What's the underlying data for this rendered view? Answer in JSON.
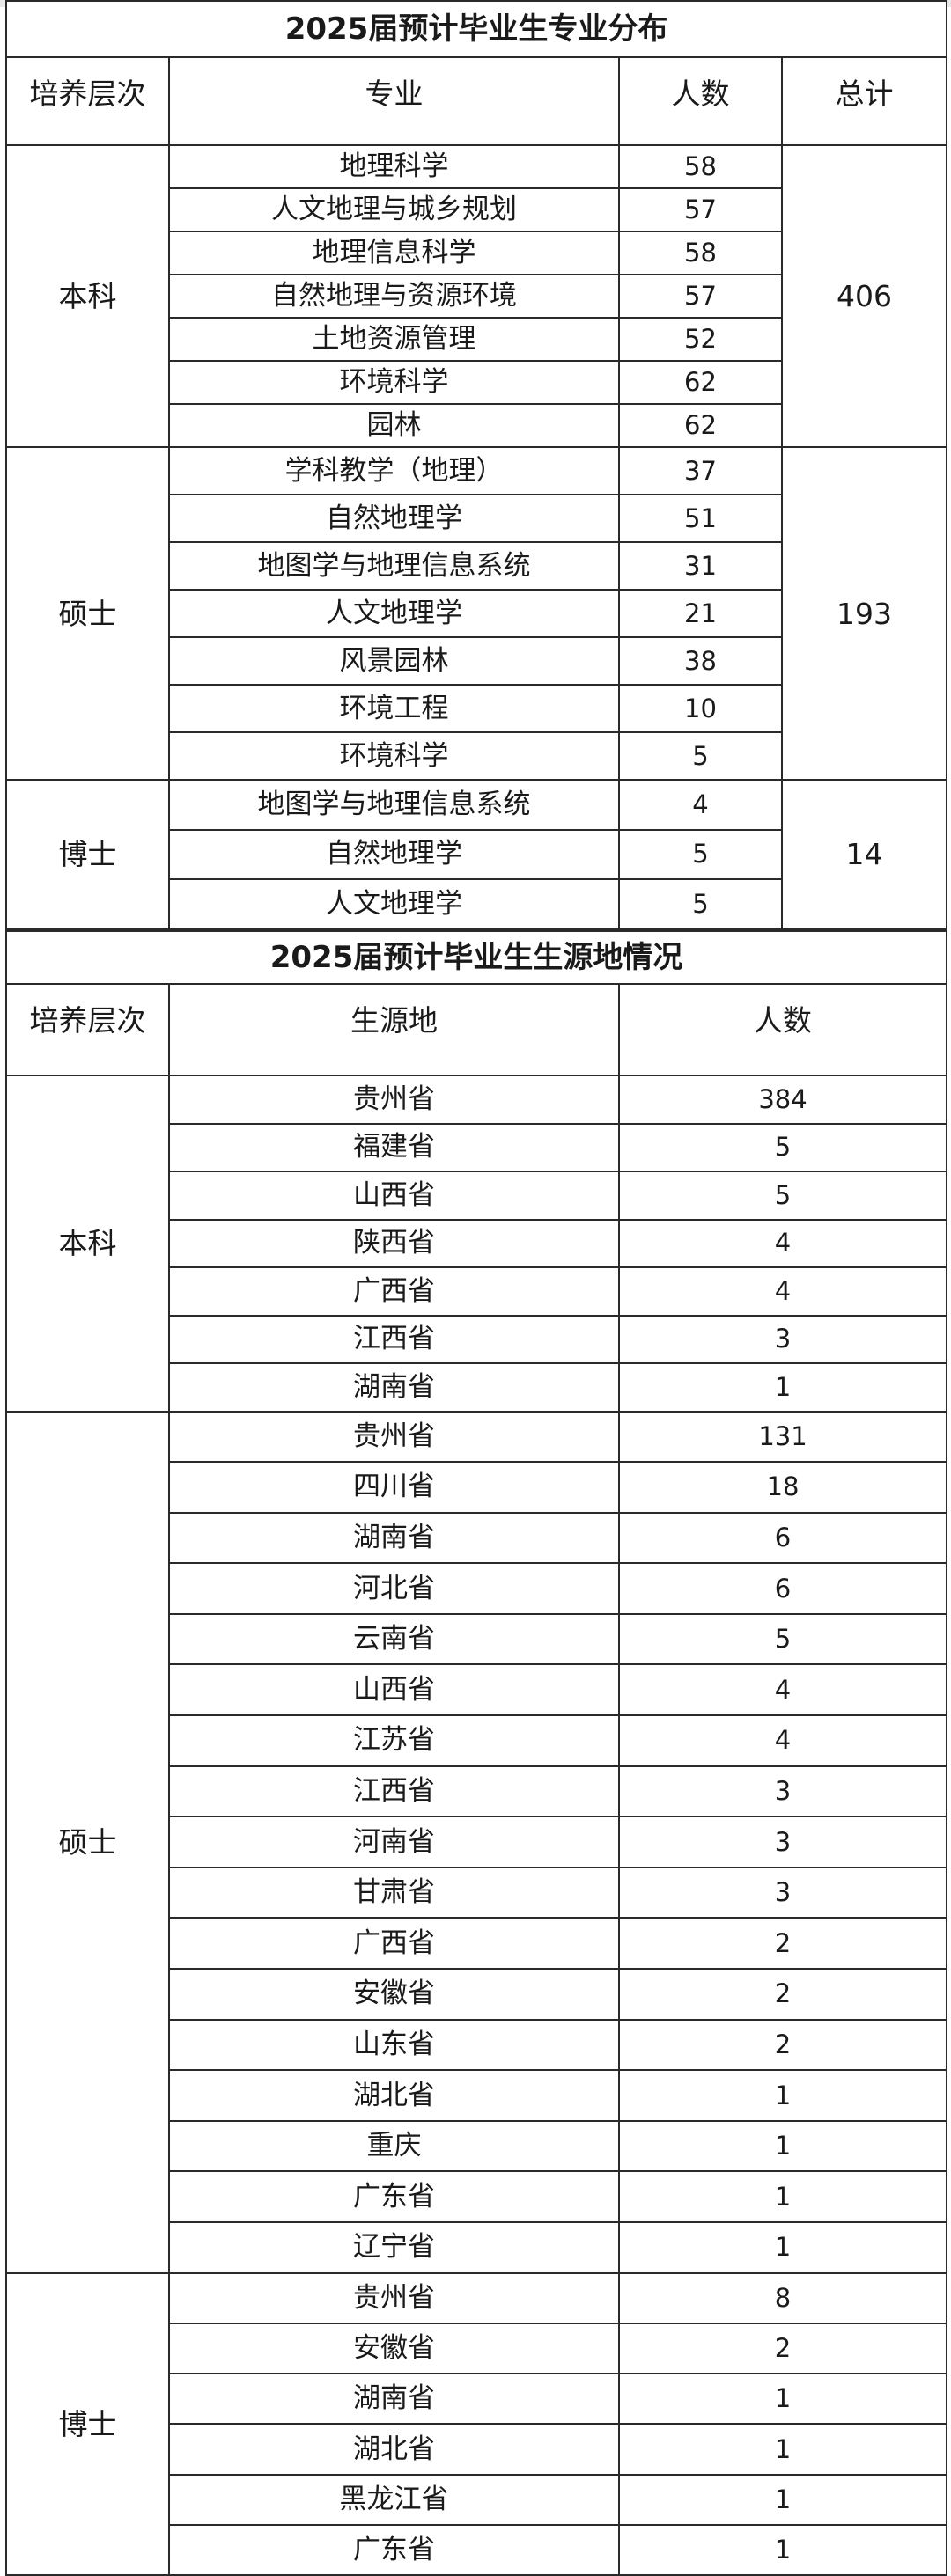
{
  "majors": {
    "title": "2025届预计毕业生专业分布",
    "headers": [
      "培养层次",
      "专业",
      "人数",
      "总计"
    ],
    "groups": [
      {
        "level": "本科",
        "total": "406",
        "rows": [
          {
            "name": "地理科学",
            "count": "58"
          },
          {
            "name": "人文地理与城乡规划",
            "count": "57"
          },
          {
            "name": "地理信息科学",
            "count": "58"
          },
          {
            "name": "自然地理与资源环境",
            "count": "57"
          },
          {
            "name": "土地资源管理",
            "count": "52"
          },
          {
            "name": "环境科学",
            "count": "62"
          },
          {
            "name": "园林",
            "count": "62"
          }
        ]
      },
      {
        "level": "硕士",
        "total": "193",
        "rows": [
          {
            "name": "学科教学（地理）",
            "count": "37"
          },
          {
            "name": "自然地理学",
            "count": "51"
          },
          {
            "name": "地图学与地理信息系统",
            "count": "31"
          },
          {
            "name": "人文地理学",
            "count": "21"
          },
          {
            "name": "风景园林",
            "count": "38"
          },
          {
            "name": "环境工程",
            "count": "10"
          },
          {
            "name": "环境科学",
            "count": "5"
          }
        ]
      },
      {
        "level": "博士",
        "total": "14",
        "rows": [
          {
            "name": "地图学与地理信息系统",
            "count": "4"
          },
          {
            "name": "自然地理学",
            "count": "5"
          },
          {
            "name": "人文地理学",
            "count": "5"
          }
        ]
      }
    ]
  },
  "origins": {
    "title": "2025届预计毕业生生源地情况",
    "headers": [
      "培养层次",
      "生源地",
      "人数"
    ],
    "groups": [
      {
        "level": "本科",
        "rows": [
          {
            "name": "贵州省",
            "count": "384"
          },
          {
            "name": "福建省",
            "count": "5"
          },
          {
            "name": "山西省",
            "count": "5"
          },
          {
            "name": "陕西省",
            "count": "4"
          },
          {
            "name": "广西省",
            "count": "4"
          },
          {
            "name": "江西省",
            "count": "3"
          },
          {
            "name": "湖南省",
            "count": "1"
          }
        ]
      },
      {
        "level": "硕士",
        "rows": [
          {
            "name": "贵州省",
            "count": "131"
          },
          {
            "name": "四川省",
            "count": "18"
          },
          {
            "name": "湖南省",
            "count": "6"
          },
          {
            "name": "河北省",
            "count": "6"
          },
          {
            "name": "云南省",
            "count": "5"
          },
          {
            "name": "山西省",
            "count": "4"
          },
          {
            "name": "江苏省",
            "count": "4"
          },
          {
            "name": "江西省",
            "count": "3"
          },
          {
            "name": "河南省",
            "count": "3"
          },
          {
            "name": "甘肃省",
            "count": "3"
          },
          {
            "name": "广西省",
            "count": "2"
          },
          {
            "name": "安徽省",
            "count": "2"
          },
          {
            "name": "山东省",
            "count": "2"
          },
          {
            "name": "湖北省",
            "count": "1"
          },
          {
            "name": "重庆",
            "count": "1"
          },
          {
            "name": "广东省",
            "count": "1"
          },
          {
            "name": "辽宁省",
            "count": "1"
          }
        ]
      },
      {
        "level": "博士",
        "rows": [
          {
            "name": "贵州省",
            "count": "8"
          },
          {
            "name": "安徽省",
            "count": "2"
          },
          {
            "name": "湖南省",
            "count": "1"
          },
          {
            "name": "湖北省",
            "count": "1"
          },
          {
            "name": "黑龙江省",
            "count": "1"
          },
          {
            "name": "广东省",
            "count": "1"
          }
        ]
      }
    ]
  }
}
